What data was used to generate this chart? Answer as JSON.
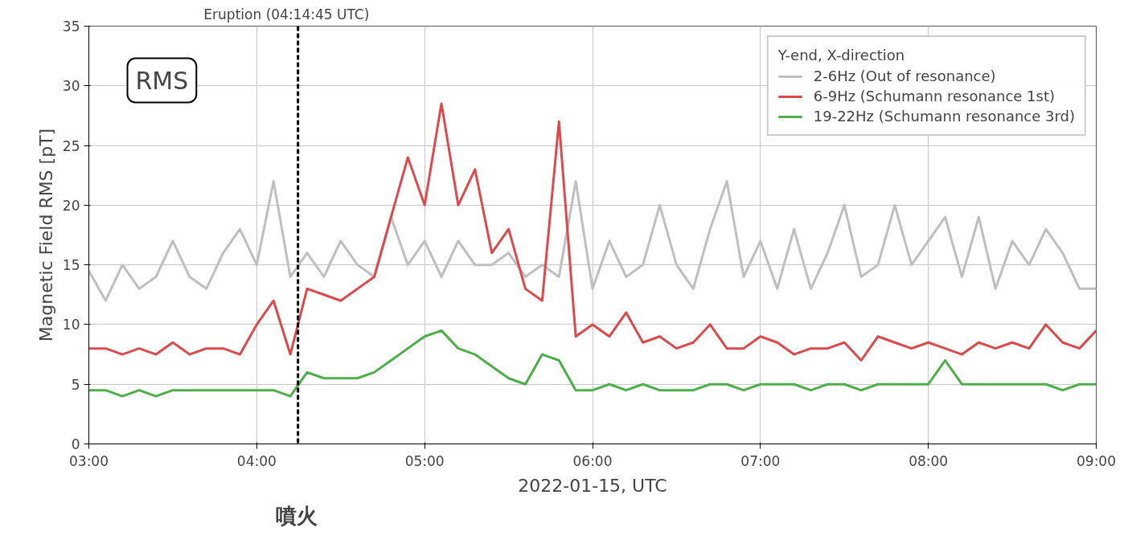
{
  "chart_data": {
    "type": "line",
    "xlabel": "2022-01-15, UTC",
    "ylabel": "Magnetic Field RMS [pT]",
    "legend_title": "Y-end, X-direction",
    "x": [
      3.0,
      3.1,
      3.2,
      3.3,
      3.4,
      3.5,
      3.6,
      3.7,
      3.8,
      3.9,
      4.0,
      4.1,
      4.2,
      4.3,
      4.4,
      4.5,
      4.6,
      4.7,
      4.8,
      4.9,
      5.0,
      5.1,
      5.2,
      5.3,
      5.4,
      5.5,
      5.6,
      5.7,
      5.8,
      5.9,
      6.0,
      6.1,
      6.2,
      6.3,
      6.4,
      6.5,
      6.6,
      6.7,
      6.8,
      6.9,
      7.0,
      7.1,
      7.2,
      7.3,
      7.4,
      7.5,
      7.6,
      7.7,
      7.8,
      7.9,
      8.0,
      8.1,
      8.2,
      8.3,
      8.4,
      8.5,
      8.6,
      8.7,
      8.8,
      8.9,
      9.0
    ],
    "series": [
      {
        "name": "2-6Hz (Out of resonance)",
        "color": "#bfbfbf",
        "values": [
          14.5,
          12,
          15,
          13,
          14,
          17,
          14,
          13,
          16,
          18,
          15,
          22,
          14,
          16,
          14,
          17,
          15,
          14,
          19,
          15,
          17,
          14,
          17,
          15,
          15,
          16,
          14,
          15,
          14,
          22,
          13,
          17,
          14,
          15,
          20,
          15,
          13,
          18,
          22,
          14,
          17,
          13,
          18,
          13,
          16,
          20,
          14,
          15,
          20,
          15,
          17,
          19,
          14,
          19,
          13,
          17,
          15,
          18,
          16,
          13,
          13
        ]
      },
      {
        "name": "6-9Hz (Schumann resonance 1st)",
        "color": "#db4a4d",
        "values": [
          8,
          8,
          7.5,
          8,
          7.5,
          8.5,
          7.5,
          8,
          8,
          7.5,
          10,
          12,
          7.5,
          13,
          12.5,
          12,
          13,
          14,
          19,
          24,
          20,
          28.5,
          20,
          23,
          16,
          18,
          13,
          12,
          27,
          9,
          10,
          9,
          11,
          8.5,
          9,
          8,
          8.5,
          10,
          8,
          8,
          9,
          8.5,
          7.5,
          8,
          8,
          8.5,
          7,
          9,
          8.5,
          8,
          8.5,
          8,
          7.5,
          8.5,
          8,
          8.5,
          8,
          10,
          8.5,
          8,
          9.5
        ]
      },
      {
        "name": "19-22Hz (Schumann resonance 3rd)",
        "color": "#4daf4a",
        "values": [
          4.5,
          4.5,
          4,
          4.5,
          4,
          4.5,
          4.5,
          4.5,
          4.5,
          4.5,
          4.5,
          4.5,
          4,
          6,
          5.5,
          5.5,
          5.5,
          6,
          7,
          8,
          9,
          9.5,
          8,
          7.5,
          6.5,
          5.5,
          5,
          7.5,
          7,
          4.5,
          4.5,
          5,
          4.5,
          5,
          4.5,
          4.5,
          4.5,
          5,
          5,
          4.5,
          5,
          5,
          5,
          4.5,
          5,
          5,
          4.5,
          5,
          5,
          5,
          5,
          7,
          5,
          5,
          5,
          5,
          5,
          5,
          4.5,
          5,
          5
        ]
      }
    ],
    "xlim": [
      3,
      9
    ],
    "ylim": [
      0,
      35
    ],
    "xticks": [
      {
        "value": 3,
        "label": "03:00"
      },
      {
        "value": 4,
        "label": "04:00"
      },
      {
        "value": 5,
        "label": "05:00"
      },
      {
        "value": 6,
        "label": "06:00"
      },
      {
        "value": 7,
        "label": "07:00"
      },
      {
        "value": 8,
        "label": "08:00"
      },
      {
        "value": 9,
        "label": "09:00"
      }
    ],
    "yticks": [
      0,
      5,
      10,
      15,
      20,
      25,
      30,
      35
    ],
    "ref_lines": [
      {
        "axis": "x",
        "value": 4.2458,
        "label": "Eruption (04:14:45 UTC)",
        "color": "#000000",
        "line_style": "dashed"
      }
    ],
    "annotations": [
      "RMS",
      "噴火"
    ],
    "grid": true,
    "legend": "top right",
    "line_style": "solid"
  }
}
